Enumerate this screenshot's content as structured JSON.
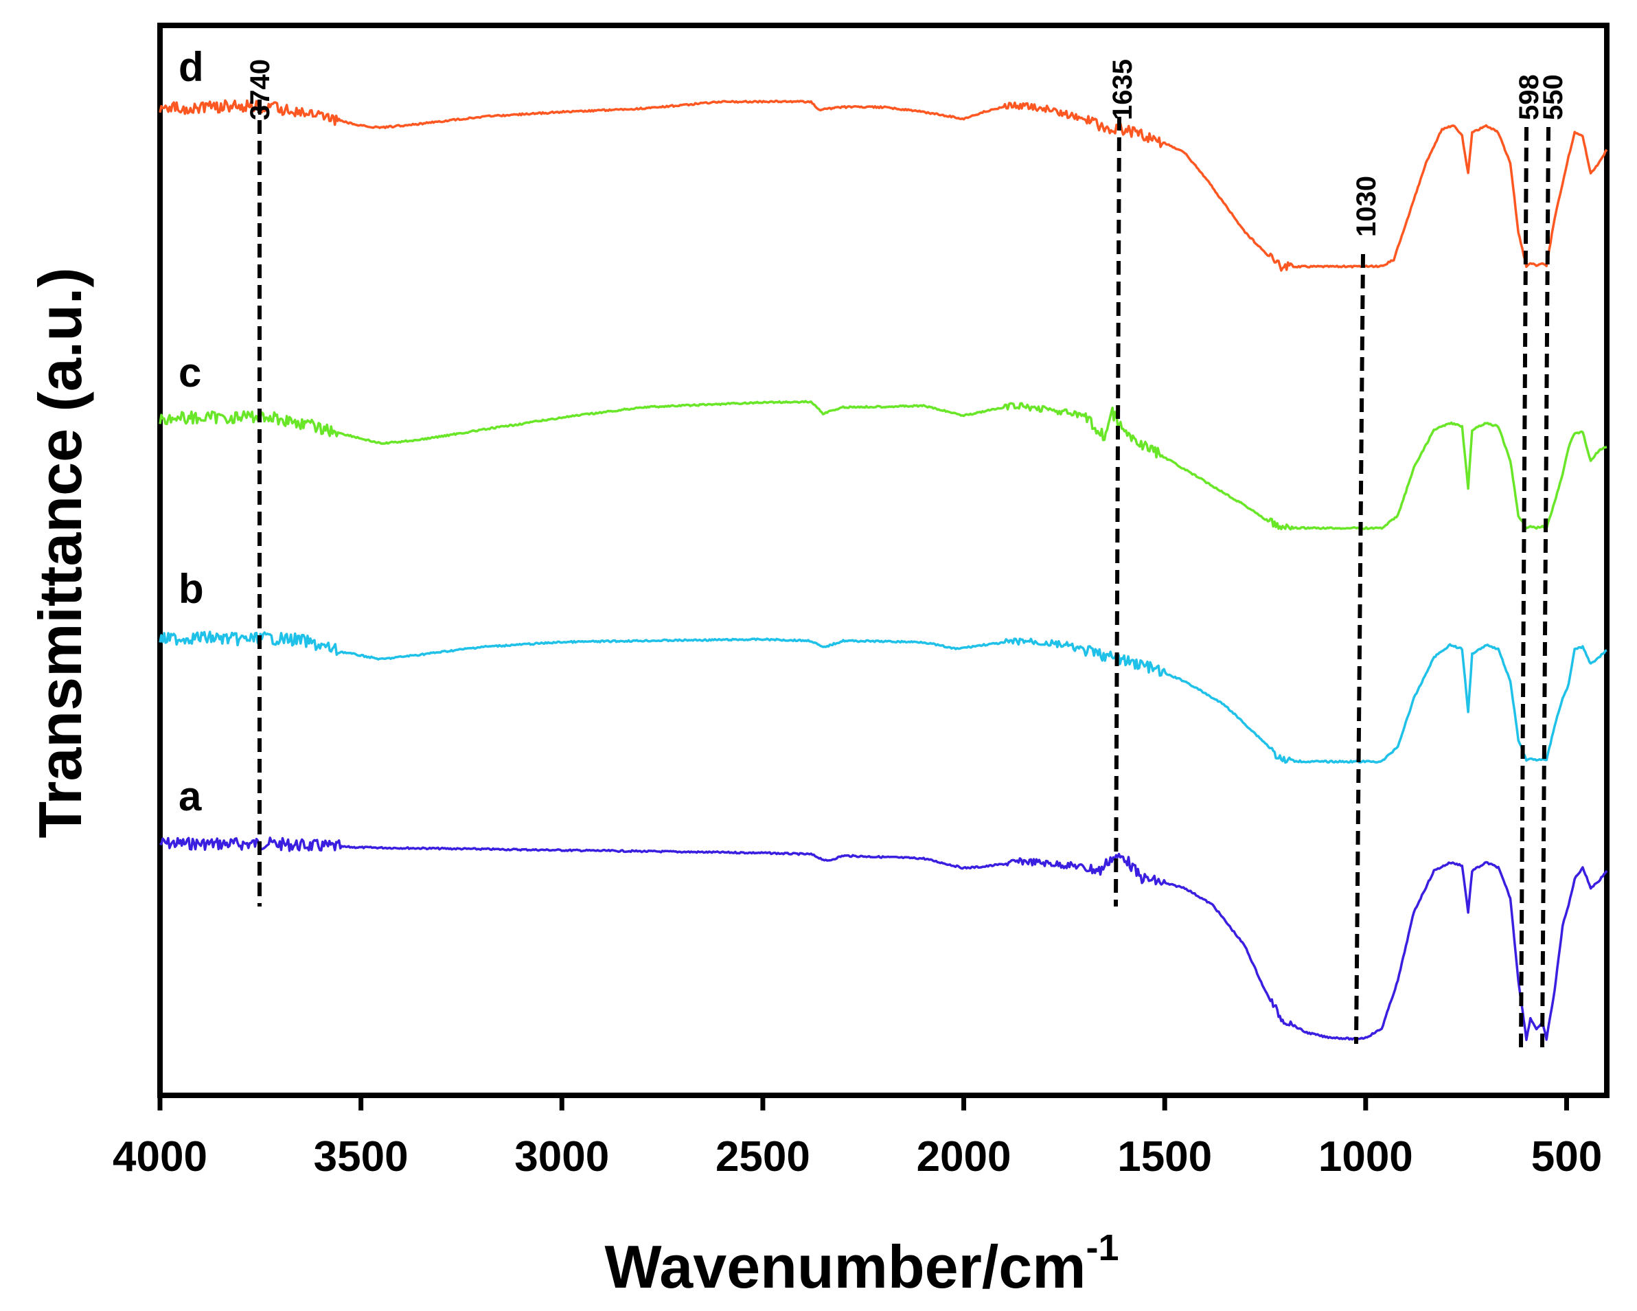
{
  "chart_data": {
    "type": "line",
    "xlabel": "Wavenumber/cm",
    "xlabel_superscript": "-1",
    "ylabel": "Transmittance (a.u.)",
    "x_reversed": true,
    "xlim": [
      4000,
      400
    ],
    "xticks": [
      4000,
      3500,
      3000,
      2500,
      2000,
      1500,
      1000,
      500
    ],
    "y_axis_ticks": false,
    "grid": false,
    "legend": "none",
    "series": [
      {
        "name": "a",
        "color": "#3a1fe0",
        "baseline": 0,
        "points": [
          [
            4000,
            0
          ],
          [
            3800,
            -1
          ],
          [
            3740,
            0
          ],
          [
            3650,
            -3
          ],
          [
            3500,
            -6
          ],
          [
            3000,
            -10
          ],
          [
            2500,
            -14
          ],
          [
            2380,
            -16
          ],
          [
            2340,
            -26
          ],
          [
            2300,
            -18
          ],
          [
            2100,
            -22
          ],
          [
            2000,
            -36
          ],
          [
            1950,
            -34
          ],
          [
            1850,
            -26
          ],
          [
            1720,
            -33
          ],
          [
            1660,
            -40
          ],
          [
            1635,
            -22
          ],
          [
            1600,
            -20
          ],
          [
            1560,
            -50
          ],
          [
            1450,
            -65
          ],
          [
            1380,
            -90
          ],
          [
            1300,
            -150
          ],
          [
            1250,
            -215
          ],
          [
            1210,
            -255
          ],
          [
            1180,
            -265
          ],
          [
            1150,
            -275
          ],
          [
            1100,
            -282
          ],
          [
            1030,
            -285
          ],
          [
            1000,
            -283
          ],
          [
            960,
            -270
          ],
          [
            920,
            -200
          ],
          [
            880,
            -100
          ],
          [
            830,
            -40
          ],
          [
            790,
            -28
          ],
          [
            760,
            -32
          ],
          [
            745,
            -100
          ],
          [
            735,
            -40
          ],
          [
            700,
            -28
          ],
          [
            670,
            -35
          ],
          [
            640,
            -80
          ],
          [
            620,
            -200
          ],
          [
            600,
            -285
          ],
          [
            590,
            -255
          ],
          [
            575,
            -270
          ],
          [
            560,
            -262
          ],
          [
            550,
            -285
          ],
          [
            530,
            -215
          ],
          [
            510,
            -120
          ],
          [
            495,
            -90
          ],
          [
            480,
            -52
          ],
          [
            460,
            -35
          ],
          [
            440,
            -65
          ],
          [
            420,
            -55
          ],
          [
            400,
            -40
          ]
        ]
      },
      {
        "name": "b",
        "color": "#1fc1e8",
        "baseline": 0,
        "points": [
          [
            4000,
            -4
          ],
          [
            3900,
            -1
          ],
          [
            3800,
            -4
          ],
          [
            3740,
            -2
          ],
          [
            3650,
            -5
          ],
          [
            3550,
            -22
          ],
          [
            3450,
            -33
          ],
          [
            3350,
            -26
          ],
          [
            3200,
            -15
          ],
          [
            3000,
            -8
          ],
          [
            2800,
            -6
          ],
          [
            2500,
            -4
          ],
          [
            2380,
            -6
          ],
          [
            2350,
            -16
          ],
          [
            2300,
            -6
          ],
          [
            2100,
            -8
          ],
          [
            2020,
            -18
          ],
          [
            1950,
            -12
          ],
          [
            1850,
            -6
          ],
          [
            1750,
            -12
          ],
          [
            1700,
            -20
          ],
          [
            1635,
            -30
          ],
          [
            1550,
            -42
          ],
          [
            1450,
            -65
          ],
          [
            1350,
            -100
          ],
          [
            1250,
            -155
          ],
          [
            1210,
            -180
          ],
          [
            1150,
            -182
          ],
          [
            1030,
            -182
          ],
          [
            960,
            -182
          ],
          [
            920,
            -160
          ],
          [
            880,
            -90
          ],
          [
            830,
            -30
          ],
          [
            790,
            -12
          ],
          [
            760,
            -18
          ],
          [
            745,
            -110
          ],
          [
            735,
            -25
          ],
          [
            700,
            -12
          ],
          [
            670,
            -18
          ],
          [
            640,
            -65
          ],
          [
            620,
            -150
          ],
          [
            600,
            -180
          ],
          [
            590,
            -178
          ],
          [
            575,
            -180
          ],
          [
            560,
            -178
          ],
          [
            550,
            -180
          ],
          [
            530,
            -130
          ],
          [
            510,
            -90
          ],
          [
            495,
            -70
          ],
          [
            480,
            -18
          ],
          [
            460,
            -15
          ],
          [
            440,
            -40
          ],
          [
            420,
            -30
          ],
          [
            400,
            -20
          ]
        ]
      },
      {
        "name": "c",
        "color": "#69e628",
        "baseline": 0,
        "points": [
          [
            4000,
            2
          ],
          [
            3850,
            3
          ],
          [
            3740,
            5
          ],
          [
            3650,
            -5
          ],
          [
            3550,
            -20
          ],
          [
            3450,
            -35
          ],
          [
            3350,
            -29
          ],
          [
            3200,
            -15
          ],
          [
            3000,
            3
          ],
          [
            2800,
            18
          ],
          [
            2500,
            25
          ],
          [
            2380,
            26
          ],
          [
            2350,
            9
          ],
          [
            2300,
            18
          ],
          [
            2100,
            20
          ],
          [
            2000,
            6
          ],
          [
            1950,
            12
          ],
          [
            1880,
            20
          ],
          [
            1800,
            16
          ],
          [
            1700,
            5
          ],
          [
            1650,
            -25
          ],
          [
            1630,
            10
          ],
          [
            1600,
            -20
          ],
          [
            1500,
            -55
          ],
          [
            1400,
            -90
          ],
          [
            1300,
            -125
          ],
          [
            1250,
            -145
          ],
          [
            1210,
            -158
          ],
          [
            1150,
            -158
          ],
          [
            1030,
            -158
          ],
          [
            960,
            -158
          ],
          [
            920,
            -140
          ],
          [
            880,
            -70
          ],
          [
            830,
            -15
          ],
          [
            790,
            -5
          ],
          [
            760,
            -10
          ],
          [
            745,
            -100
          ],
          [
            735,
            -15
          ],
          [
            700,
            -5
          ],
          [
            670,
            -10
          ],
          [
            640,
            -60
          ],
          [
            620,
            -140
          ],
          [
            600,
            -158
          ],
          [
            590,
            -155
          ],
          [
            575,
            -158
          ],
          [
            560,
            -155
          ],
          [
            550,
            -158
          ],
          [
            530,
            -120
          ],
          [
            510,
            -80
          ],
          [
            495,
            -40
          ],
          [
            480,
            -20
          ],
          [
            460,
            -18
          ],
          [
            440,
            -60
          ],
          [
            420,
            -45
          ],
          [
            400,
            -40
          ]
        ]
      },
      {
        "name": "d",
        "color": "#ff5722",
        "baseline": 0,
        "points": [
          [
            4000,
            0
          ],
          [
            3900,
            2
          ],
          [
            3800,
            4
          ],
          [
            3740,
            2
          ],
          [
            3650,
            -5
          ],
          [
            3500,
            -25
          ],
          [
            3450,
            -28
          ],
          [
            3350,
            -22
          ],
          [
            3200,
            -12
          ],
          [
            3000,
            -5
          ],
          [
            2800,
            0
          ],
          [
            2600,
            10
          ],
          [
            2400,
            10
          ],
          [
            2380,
            10
          ],
          [
            2360,
            -2
          ],
          [
            2300,
            2
          ],
          [
            2200,
            2
          ],
          [
            2100,
            -5
          ],
          [
            2000,
            -15
          ],
          [
            1950,
            -5
          ],
          [
            1880,
            5
          ],
          [
            1800,
            0
          ],
          [
            1700,
            -15
          ],
          [
            1640,
            -30
          ],
          [
            1600,
            -30
          ],
          [
            1500,
            -50
          ],
          [
            1450,
            -65
          ],
          [
            1400,
            -100
          ],
          [
            1350,
            -140
          ],
          [
            1300,
            -180
          ],
          [
            1250,
            -210
          ],
          [
            1220,
            -225
          ],
          [
            1210,
            -230
          ],
          [
            1150,
            -230
          ],
          [
            1030,
            -230
          ],
          [
            960,
            -230
          ],
          [
            930,
            -220
          ],
          [
            890,
            -150
          ],
          [
            850,
            -80
          ],
          [
            810,
            -30
          ],
          [
            780,
            -25
          ],
          [
            760,
            -40
          ],
          [
            745,
            -95
          ],
          [
            735,
            -35
          ],
          [
            700,
            -25
          ],
          [
            670,
            -35
          ],
          [
            640,
            -80
          ],
          [
            620,
            -180
          ],
          [
            600,
            -230
          ],
          [
            590,
            -225
          ],
          [
            575,
            -228
          ],
          [
            560,
            -225
          ],
          [
            550,
            -230
          ],
          [
            530,
            -160
          ],
          [
            510,
            -110
          ],
          [
            495,
            -70
          ],
          [
            480,
            -35
          ],
          [
            460,
            -40
          ],
          [
            440,
            -95
          ],
          [
            420,
            -80
          ],
          [
            400,
            -60
          ]
        ]
      }
    ],
    "annotations": [
      {
        "label": "3740",
        "x": 3740
      },
      {
        "label": "1635",
        "x": 1635
      },
      {
        "label": "1030",
        "x": 1030
      },
      {
        "label": "598",
        "x": 598
      },
      {
        "label": "550",
        "x": 550
      }
    ]
  }
}
